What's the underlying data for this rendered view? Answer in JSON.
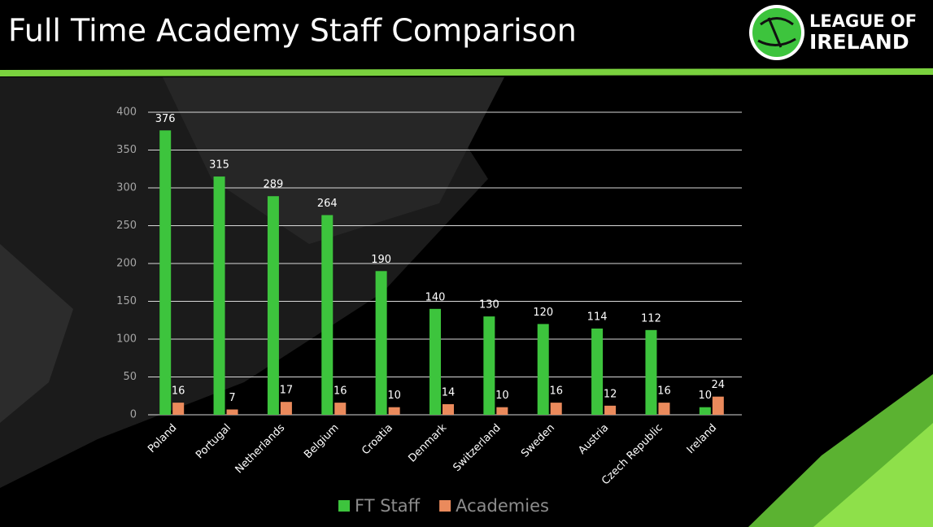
{
  "logo": [
    "LEAGUE OF",
    "IRELAND"
  ],
  "chart_data": {
    "type": "bar",
    "title": "Full Time Academy Staff Comparison",
    "categories": [
      "Poland",
      "Portugal",
      "Netherlands",
      "Belgium",
      "Croatia",
      "Denmark",
      "Switzerland",
      "Sweden",
      "Austria",
      "Czech Republic",
      "Ireland"
    ],
    "series": [
      {
        "name": "FT Staff",
        "color": "#3dc43d",
        "values": [
          376,
          315,
          289,
          264,
          190,
          140,
          130,
          120,
          114,
          112,
          10
        ]
      },
      {
        "name": "Academies",
        "color": "#ea8a5c",
        "values": [
          16,
          7,
          17,
          16,
          10,
          14,
          10,
          16,
          12,
          16,
          24
        ]
      }
    ],
    "ylim": [
      0,
      400
    ],
    "yticks": [
      0,
      50,
      100,
      150,
      200,
      250,
      300,
      350,
      400
    ],
    "grid": true,
    "data_labels": true,
    "legend": "bottom"
  }
}
